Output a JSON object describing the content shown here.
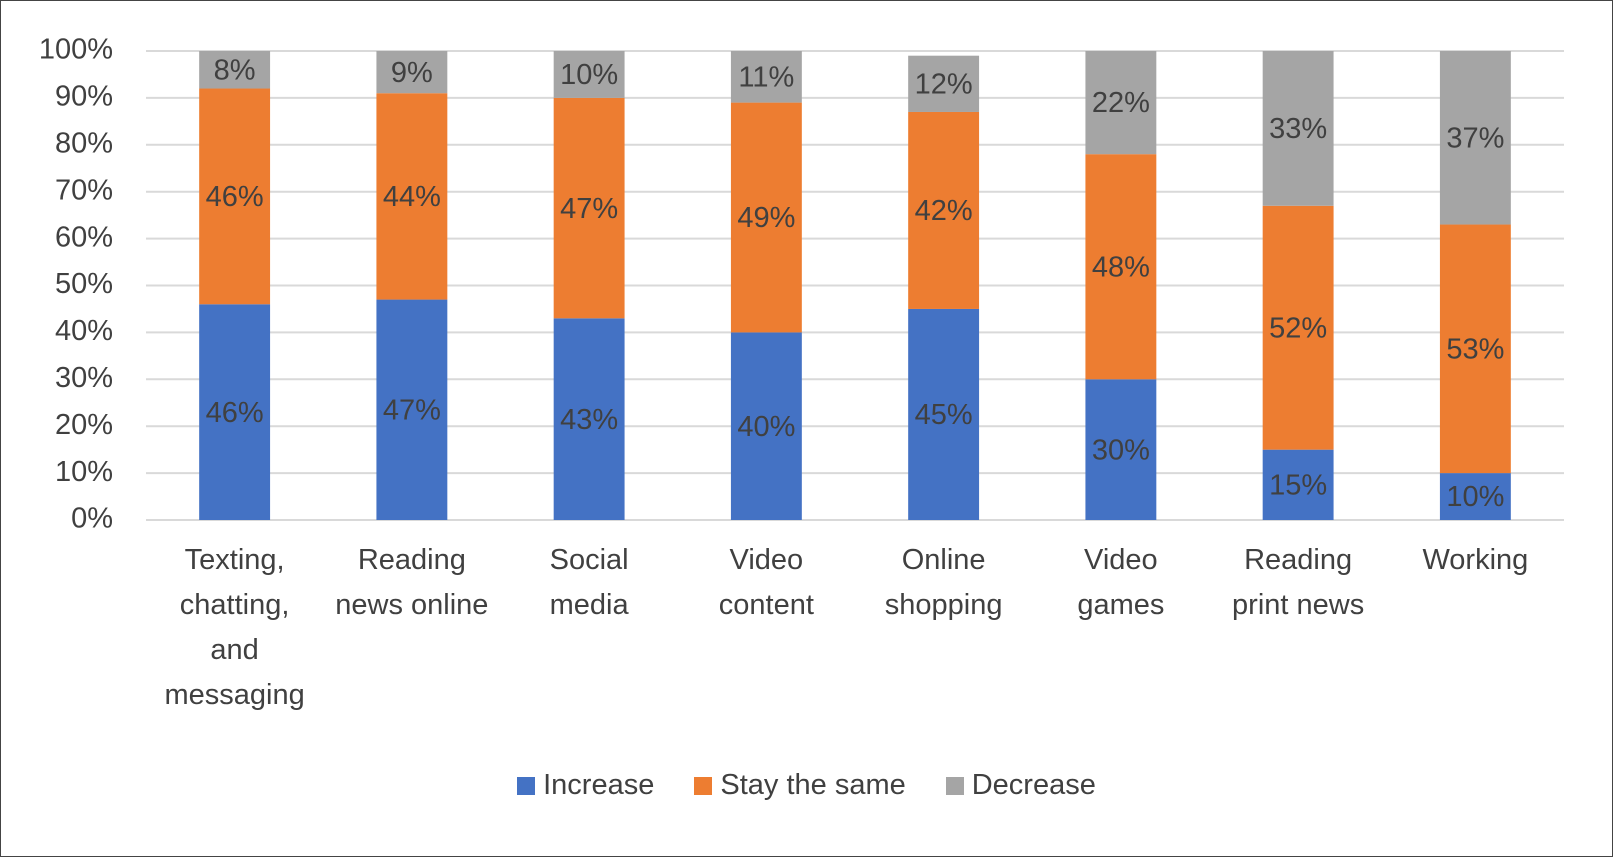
{
  "chart_data": {
    "type": "stacked_bar",
    "categories": [
      "Texting, chatting, and messaging",
      "Reading news online",
      "Social media",
      "Video content",
      "Online shopping",
      "Video games",
      "Reading print news",
      "Working"
    ],
    "series": [
      {
        "name": "Increase",
        "color": "#4472c4",
        "values": [
          46,
          47,
          43,
          40,
          45,
          30,
          15,
          10
        ],
        "value_labels": [
          "46%",
          "47%",
          "43%",
          "40%",
          "45%",
          "30%",
          "15%",
          "10%"
        ]
      },
      {
        "name": "Stay the same",
        "color": "#ed7d31",
        "values": [
          46,
          44,
          47,
          49,
          42,
          48,
          52,
          53
        ],
        "value_labels": [
          "46%",
          "44%",
          "47%",
          "49%",
          "42%",
          "48%",
          "52%",
          "53%"
        ]
      },
      {
        "name": "Decrease",
        "color": "#a5a5a5",
        "values": [
          8,
          9,
          10,
          11,
          12,
          22,
          33,
          37
        ],
        "value_labels": [
          "8%",
          "9%",
          "10%",
          "11%",
          "12%",
          "22%",
          "33%",
          "37%"
        ]
      }
    ],
    "ylim": [
      0,
      100
    ],
    "yticks": [
      {
        "value": 0,
        "label": "0%"
      },
      {
        "value": 10,
        "label": "10%"
      },
      {
        "value": 20,
        "label": "20%"
      },
      {
        "value": 30,
        "label": "30%"
      },
      {
        "value": 40,
        "label": "40%"
      },
      {
        "value": 50,
        "label": "50%"
      },
      {
        "value": 60,
        "label": "60%"
      },
      {
        "value": 70,
        "label": "70%"
      },
      {
        "value": 80,
        "label": "80%"
      },
      {
        "value": 90,
        "label": "90%"
      },
      {
        "value": 100,
        "label": "100%"
      }
    ],
    "grid": true,
    "legend": "bottom"
  }
}
